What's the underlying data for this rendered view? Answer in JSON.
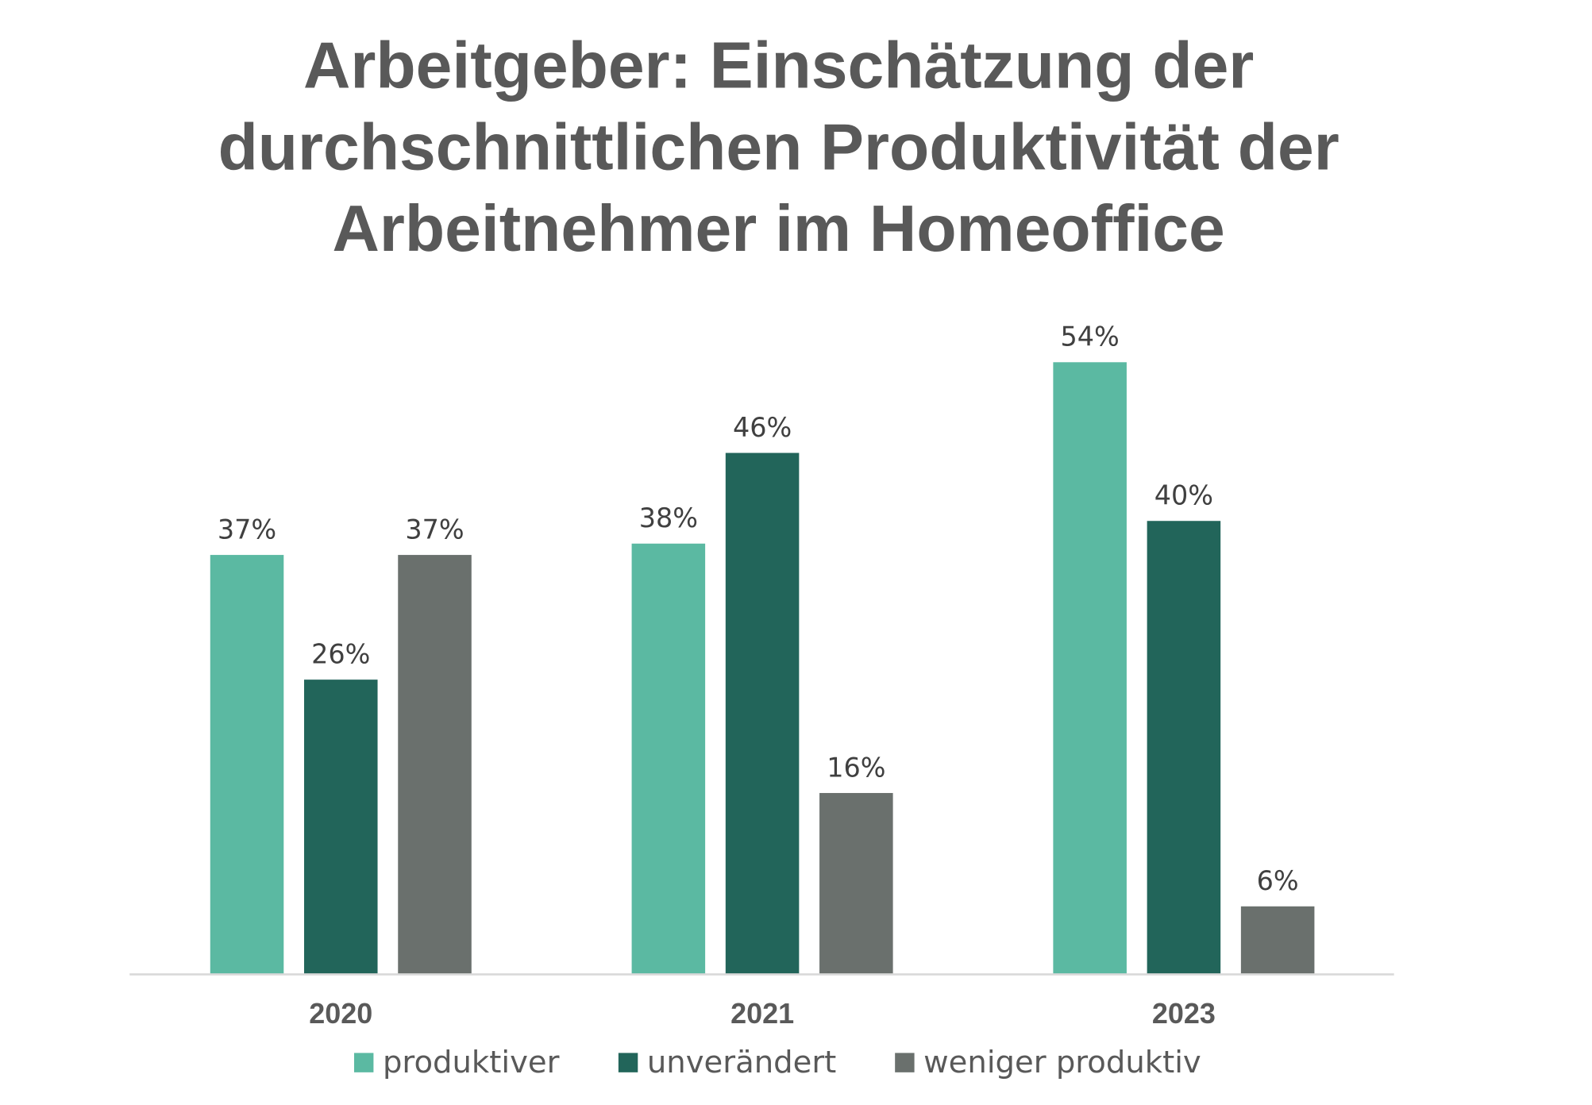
{
  "chart_data": {
    "type": "bar",
    "title_lines": [
      "Arbeitgeber: Einschätzung der",
      "durchschnittlichen Produktivität der",
      "Arbeitnehmer im Homeoffice"
    ],
    "categories": [
      "2020",
      "2021",
      "2023"
    ],
    "series": [
      {
        "name": "produktiver",
        "values": [
          37,
          38,
          54
        ],
        "color": "#5bb9a2"
      },
      {
        "name": "unverändert",
        "values": [
          26,
          46,
          40
        ],
        "color": "#22655a"
      },
      {
        "name": "weniger produktiv",
        "values": [
          37,
          16,
          6
        ],
        "color": "#6a706d"
      }
    ],
    "value_suffix": "%",
    "ylim": [
      0,
      54
    ],
    "grid": false,
    "legend_position": "bottom",
    "axis_line_color": "#d9d9d9"
  }
}
